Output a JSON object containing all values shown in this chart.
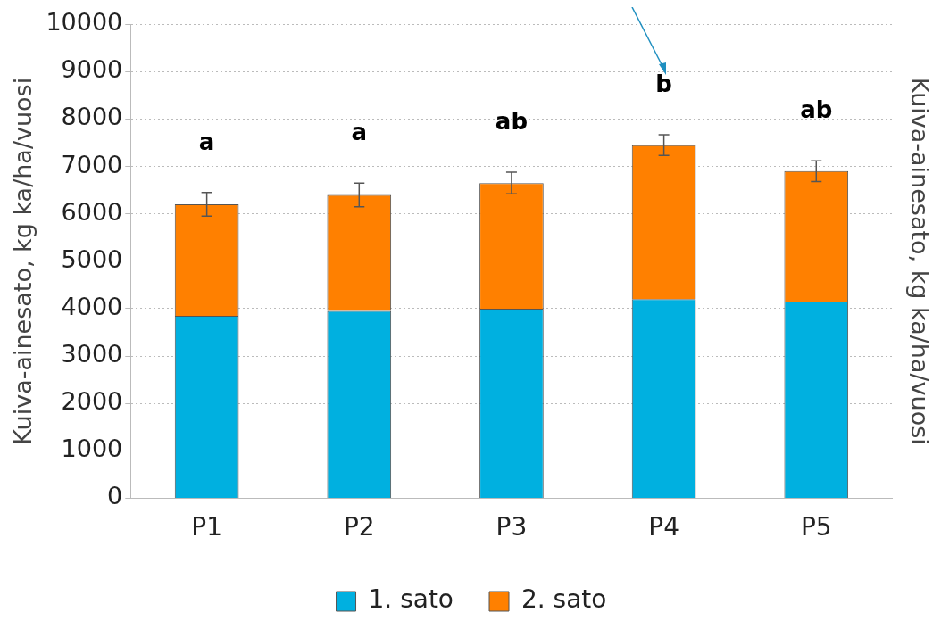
{
  "chart_data": {
    "type": "bar",
    "stacked": true,
    "categories": [
      "P1",
      "P2",
      "P3",
      "P4",
      "P5"
    ],
    "series": [
      {
        "name": "1. sato",
        "color": "#00b0e0",
        "values": [
          3850,
          3950,
          4000,
          4200,
          4150
        ]
      },
      {
        "name": "2. sato",
        "color": "#ff8000",
        "values": [
          2350,
          2450,
          2650,
          3250,
          2750
        ],
        "errors": [
          250,
          250,
          230,
          220,
          220
        ]
      }
    ],
    "ylabel": "Kuiva-ainesato, kg ka/ha/vuosi",
    "y2label": "Kuiva-ainesato, kg ka/ha/vuosi",
    "ylim": [
      0,
      10000
    ],
    "yticks": [
      0,
      1000,
      2000,
      3000,
      4000,
      5000,
      6000,
      7000,
      8000,
      9000,
      10000
    ],
    "grid": "y",
    "legend": "bottom",
    "annotations": [
      "a",
      "a",
      "ab",
      "b",
      "ab"
    ]
  }
}
